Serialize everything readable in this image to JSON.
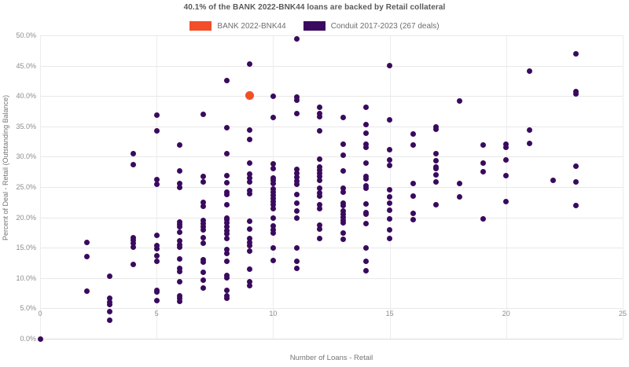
{
  "title": "40.1% of the BANK 2022-BNK44 loans are backed by Retail collateral",
  "legend": {
    "items": [
      {
        "label": "BANK 2022-BNK44",
        "color": "#F24E29"
      },
      {
        "label": "Conduit 2017-2023 (267 deals)",
        "color": "#3A0A5E"
      }
    ]
  },
  "colors": {
    "bank": "#F24E29",
    "conduit": "#3A0A5E",
    "grid": "#E8E8E8",
    "title_text": "#595959",
    "axis_text": "#757575",
    "tick_text": "#8C8C8C"
  },
  "chart_data": {
    "type": "scatter",
    "title": "40.1% of the BANK 2022-BNK44 loans are backed by Retail collateral",
    "xlabel": "Number of Loans - Retail",
    "ylabel": "Percent of Deal - Retail (Outstanding Balance)",
    "xlim": [
      0,
      25
    ],
    "ylim": [
      0,
      50
    ],
    "grid": true,
    "legend_position": "top-center",
    "x_tick_values": [
      0,
      5,
      10,
      15,
      20,
      25
    ],
    "x_tick_labels": [
      "0",
      "5",
      "10",
      "15",
      "20",
      "25"
    ],
    "y_tick_values": [
      0,
      5,
      10,
      15,
      20,
      25,
      30,
      35,
      40,
      45,
      50
    ],
    "y_tick_labels": [
      "0.0%",
      "5.0%",
      "10.0%",
      "15.0%",
      "20.0%",
      "25.0%",
      "30.0%",
      "35.0%",
      "40.0%",
      "45.0%",
      "50.0%"
    ],
    "series": [
      {
        "name": "BANK 2022-BNK44",
        "color": "#F24E29",
        "marker_size": 11,
        "points": [
          [
            9,
            40.1
          ]
        ]
      },
      {
        "name": "Conduit 2017-2023 (267 deals)",
        "color": "#3A0A5E",
        "marker_size": 7,
        "points": [
          [
            0,
            0.0
          ],
          [
            2,
            15.9
          ],
          [
            2,
            13.6
          ],
          [
            2,
            7.9
          ],
          [
            3,
            10.3
          ],
          [
            3,
            6.7
          ],
          [
            3,
            6.0
          ],
          [
            3,
            5.6
          ],
          [
            3,
            4.5
          ],
          [
            3,
            3.1
          ],
          [
            4,
            30.5
          ],
          [
            4,
            28.7
          ],
          [
            4,
            16.7
          ],
          [
            4,
            16.2
          ],
          [
            4,
            15.8
          ],
          [
            4,
            15.1
          ],
          [
            4,
            12.2
          ],
          [
            5,
            36.9
          ],
          [
            5,
            34.3
          ],
          [
            5,
            26.2
          ],
          [
            5,
            25.5
          ],
          [
            5,
            17.0
          ],
          [
            5,
            15.3
          ],
          [
            5,
            14.8
          ],
          [
            5,
            13.7
          ],
          [
            5,
            12.7
          ],
          [
            5,
            8.0
          ],
          [
            5,
            7.7
          ],
          [
            5,
            6.3
          ],
          [
            6,
            31.9
          ],
          [
            6,
            27.6
          ],
          [
            6,
            25.6
          ],
          [
            6,
            24.9
          ],
          [
            6,
            19.3
          ],
          [
            6,
            18.9
          ],
          [
            6,
            18.5
          ],
          [
            6,
            17.6
          ],
          [
            6,
            16.1
          ],
          [
            6,
            15.5
          ],
          [
            6,
            15.1
          ],
          [
            6,
            13.1
          ],
          [
            6,
            11.6
          ],
          [
            6,
            11.1
          ],
          [
            6,
            9.4
          ],
          [
            6,
            7.1
          ],
          [
            6,
            6.7
          ],
          [
            6,
            6.2
          ],
          [
            7,
            37.0
          ],
          [
            7,
            26.8
          ],
          [
            7,
            25.9
          ],
          [
            7,
            22.5
          ],
          [
            7,
            21.8
          ],
          [
            7,
            19.5
          ],
          [
            7,
            19.0
          ],
          [
            7,
            18.5
          ],
          [
            7,
            17.9
          ],
          [
            7,
            16.7
          ],
          [
            7,
            15.8
          ],
          [
            7,
            13.0
          ],
          [
            7,
            12.6
          ],
          [
            7,
            11.0
          ],
          [
            7,
            9.6
          ],
          [
            7,
            8.3
          ],
          [
            8,
            42.5
          ],
          [
            8,
            34.8
          ],
          [
            8,
            30.5
          ],
          [
            8,
            26.9
          ],
          [
            8,
            25.7
          ],
          [
            8,
            24.2
          ],
          [
            8,
            23.8
          ],
          [
            8,
            22.1
          ],
          [
            8,
            19.9
          ],
          [
            8,
            19.6
          ],
          [
            8,
            19.1
          ],
          [
            8,
            18.4
          ],
          [
            8,
            17.8
          ],
          [
            8,
            17.3
          ],
          [
            8,
            16.5
          ],
          [
            8,
            14.7
          ],
          [
            8,
            14.1
          ],
          [
            8,
            12.7
          ],
          [
            8,
            10.4
          ],
          [
            8,
            10.1
          ],
          [
            8,
            8.0
          ],
          [
            8,
            7.0
          ],
          [
            8,
            6.7
          ],
          [
            9,
            45.3
          ],
          [
            9,
            34.4
          ],
          [
            9,
            32.9
          ],
          [
            9,
            29.0
          ],
          [
            9,
            27.2
          ],
          [
            9,
            26.5
          ],
          [
            9,
            25.8
          ],
          [
            9,
            24.4
          ],
          [
            9,
            23.9
          ],
          [
            9,
            19.4
          ],
          [
            9,
            18.1
          ],
          [
            9,
            16.5
          ],
          [
            9,
            15.9
          ],
          [
            9,
            15.3
          ],
          [
            9,
            14.5
          ],
          [
            9,
            11.4
          ],
          [
            9,
            9.4
          ],
          [
            9,
            8.8
          ],
          [
            10,
            39.9
          ],
          [
            10,
            36.5
          ],
          [
            10,
            28.8
          ],
          [
            10,
            28.0
          ],
          [
            10,
            26.5
          ],
          [
            10,
            26.1
          ],
          [
            10,
            25.6
          ],
          [
            10,
            24.7
          ],
          [
            10,
            24.2
          ],
          [
            10,
            23.7
          ],
          [
            10,
            23.1
          ],
          [
            10,
            22.6
          ],
          [
            10,
            22.1
          ],
          [
            10,
            21.5
          ],
          [
            10,
            19.9
          ],
          [
            10,
            18.6
          ],
          [
            10,
            18.0
          ],
          [
            10,
            17.4
          ],
          [
            10,
            15.0
          ],
          [
            10,
            12.9
          ],
          [
            11,
            49.4
          ],
          [
            11,
            39.8
          ],
          [
            11,
            39.3
          ],
          [
            11,
            37.1
          ],
          [
            11,
            27.9
          ],
          [
            11,
            27.3
          ],
          [
            11,
            26.6
          ],
          [
            11,
            26.0
          ],
          [
            11,
            25.5
          ],
          [
            11,
            23.8
          ],
          [
            11,
            22.3
          ],
          [
            11,
            21.0
          ],
          [
            11,
            19.9
          ],
          [
            11,
            15.0
          ],
          [
            11,
            12.7
          ],
          [
            11,
            11.6
          ],
          [
            12,
            38.2
          ],
          [
            12,
            37.1
          ],
          [
            12,
            36.6
          ],
          [
            12,
            34.3
          ],
          [
            12,
            29.6
          ],
          [
            12,
            28.3
          ],
          [
            12,
            27.8
          ],
          [
            12,
            27.3
          ],
          [
            12,
            26.7
          ],
          [
            12,
            26.1
          ],
          [
            12,
            24.8
          ],
          [
            12,
            24.0
          ],
          [
            12,
            23.5
          ],
          [
            12,
            22.1
          ],
          [
            12,
            21.5
          ],
          [
            12,
            18.7
          ],
          [
            12,
            18.1
          ],
          [
            12,
            16.5
          ],
          [
            13,
            36.4
          ],
          [
            13,
            32.0
          ],
          [
            13,
            30.3
          ],
          [
            13,
            27.7
          ],
          [
            13,
            24.8
          ],
          [
            13,
            24.2
          ],
          [
            13,
            22.4
          ],
          [
            13,
            22.0
          ],
          [
            13,
            21.0
          ],
          [
            13,
            20.5
          ],
          [
            13,
            20.0
          ],
          [
            13,
            19.5
          ],
          [
            13,
            19.1
          ],
          [
            13,
            17.4
          ],
          [
            13,
            16.4
          ],
          [
            14,
            38.1
          ],
          [
            14,
            35.3
          ],
          [
            14,
            33.9
          ],
          [
            14,
            32.1
          ],
          [
            14,
            31.6
          ],
          [
            14,
            29.0
          ],
          [
            14,
            26.8
          ],
          [
            14,
            26.4
          ],
          [
            14,
            25.2
          ],
          [
            14,
            24.8
          ],
          [
            14,
            22.2
          ],
          [
            14,
            20.8
          ],
          [
            14,
            20.5
          ],
          [
            14,
            19.0
          ],
          [
            14,
            15.0
          ],
          [
            14,
            12.7
          ],
          [
            14,
            11.2
          ],
          [
            15,
            45.0
          ],
          [
            15,
            36.1
          ],
          [
            15,
            31.2
          ],
          [
            15,
            29.5
          ],
          [
            15,
            28.6
          ],
          [
            15,
            24.6
          ],
          [
            15,
            23.4
          ],
          [
            15,
            22.3
          ],
          [
            15,
            21.2
          ],
          [
            15,
            19.7
          ],
          [
            15,
            18.0
          ],
          [
            15,
            16.5
          ],
          [
            16,
            33.8
          ],
          [
            16,
            31.9
          ],
          [
            16,
            25.6
          ],
          [
            16,
            23.5
          ],
          [
            16,
            20.7
          ],
          [
            16,
            19.6
          ],
          [
            17,
            34.9
          ],
          [
            17,
            34.5
          ],
          [
            17,
            30.5
          ],
          [
            17,
            29.4
          ],
          [
            17,
            28.3
          ],
          [
            17,
            28.0
          ],
          [
            17,
            27.0
          ],
          [
            17,
            25.8
          ],
          [
            17,
            22.1
          ],
          [
            18,
            39.2
          ],
          [
            18,
            25.6
          ],
          [
            18,
            23.4
          ],
          [
            19,
            31.9
          ],
          [
            19,
            28.9
          ],
          [
            19,
            27.5
          ],
          [
            19,
            19.8
          ],
          [
            20,
            32.0
          ],
          [
            20,
            31.6
          ],
          [
            20,
            29.5
          ],
          [
            20,
            26.9
          ],
          [
            20,
            22.6
          ],
          [
            21,
            44.1
          ],
          [
            21,
            34.4
          ],
          [
            21,
            32.2
          ],
          [
            22,
            26.1
          ],
          [
            23,
            46.9
          ],
          [
            23,
            40.8
          ],
          [
            23,
            40.4
          ],
          [
            23,
            28.4
          ],
          [
            23,
            25.9
          ],
          [
            23,
            21.9
          ]
        ]
      }
    ]
  }
}
